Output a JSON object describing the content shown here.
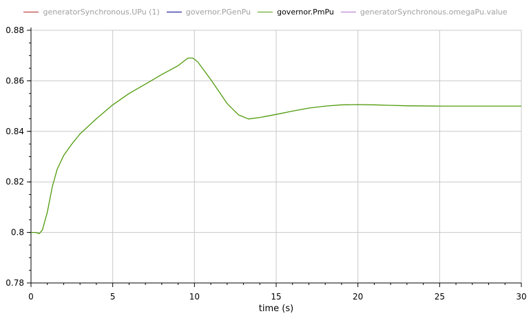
{
  "chart_data": {
    "type": "line",
    "xlabel": "time (s)",
    "ylabel": "",
    "xlim": [
      0,
      30
    ],
    "ylim": [
      0.78,
      0.88
    ],
    "xticks": [
      "0",
      "5",
      "10",
      "15",
      "20",
      "25",
      "30"
    ],
    "yticks": [
      "0.78",
      "0.8",
      "0.82",
      "0.84",
      "0.86",
      "0.88"
    ],
    "grid": true,
    "legend_placement": "top",
    "legend": [
      {
        "name": "generatorSynchronous.UPu (1)",
        "color": "#b22222",
        "visible": false
      },
      {
        "name": "governor.PGenPu",
        "color": "#00008b",
        "visible": false
      },
      {
        "name": "governor.PmPu",
        "color": "#4f9a0a",
        "visible": true
      },
      {
        "name": "generatorSynchronous.omegaPu.value",
        "color": "#b070d0",
        "visible": false
      }
    ],
    "series": [
      {
        "name": "governor.PmPu",
        "color": "#4f9a0a",
        "x": [
          0,
          0.3,
          0.5,
          0.7,
          1.0,
          1.3,
          1.6,
          2.0,
          2.5,
          3,
          4,
          5,
          6,
          7,
          8,
          9,
          9.6,
          9.9,
          10.2,
          11,
          12,
          12.7,
          13.3,
          14,
          15,
          16,
          17,
          18,
          19,
          20,
          21,
          22,
          23,
          25,
          30
        ],
        "y": [
          0.8,
          0.8,
          0.7995,
          0.801,
          0.808,
          0.818,
          0.825,
          0.8305,
          0.835,
          0.839,
          0.845,
          0.8505,
          0.855,
          0.8587,
          0.8625,
          0.866,
          0.869,
          0.869,
          0.8675,
          0.8605,
          0.851,
          0.8465,
          0.8449,
          0.8455,
          0.8467,
          0.848,
          0.8492,
          0.85,
          0.8505,
          0.8506,
          0.8505,
          0.8503,
          0.8501,
          0.85,
          0.85
        ]
      }
    ]
  }
}
